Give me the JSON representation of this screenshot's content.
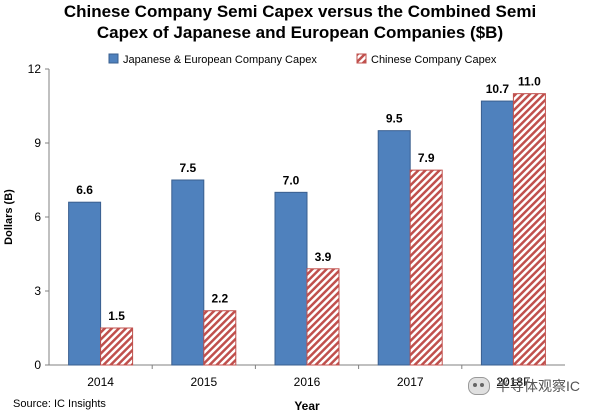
{
  "chart_data": {
    "type": "bar",
    "title_line1": "Chinese Company Semi Capex versus the Combined Semi",
    "title_line2": "Capex of Japanese and European Companies ($B)",
    "xlabel": "Year",
    "ylabel": "Dollars (B)",
    "categories": [
      "2014",
      "2015",
      "2016",
      "2017",
      "2018F"
    ],
    "series": [
      {
        "name": "Japanese & European Company Capex",
        "values": [
          6.6,
          7.5,
          7.0,
          9.5,
          10.7
        ],
        "color": "#4f81bd",
        "pattern": "solid"
      },
      {
        "name": "Chinese Company Capex",
        "values": [
          1.5,
          2.2,
          3.9,
          7.9,
          11.0
        ],
        "color": "#c0504d",
        "pattern": "hatched"
      }
    ],
    "ylim": [
      0,
      12
    ],
    "yticks": [
      "0",
      "3",
      "6",
      "9",
      "12"
    ],
    "data_label_format": "one-decimal",
    "legend_position": "top",
    "grid": false
  },
  "footer": {
    "source": "Source: IC Insights",
    "watermark": "半导体观察IC"
  }
}
